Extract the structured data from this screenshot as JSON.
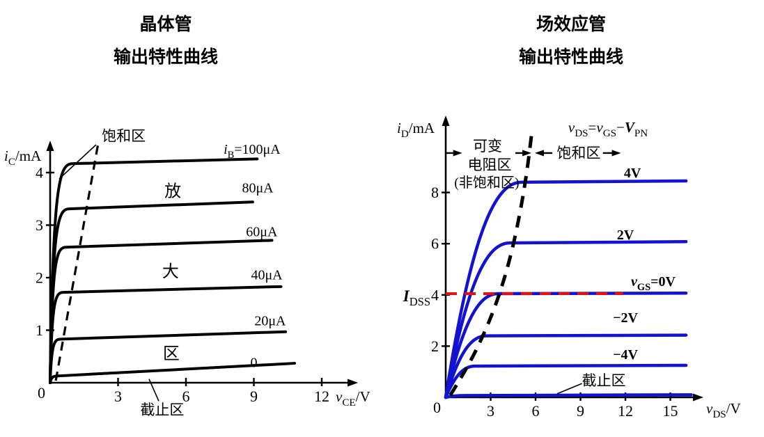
{
  "page": {
    "background": "#ffffff"
  },
  "panels": [
    {
      "title_line1": "晶体管",
      "title_line2": "输出特性曲线"
    },
    {
      "title_line1": "场效应管",
      "title_line2": "输出特性曲线"
    }
  ],
  "chart_data": [
    {
      "type": "line",
      "name": "bjt-output-characteristics",
      "title": "晶体管输出特性曲线",
      "xlabel_segs": [
        {
          "i": "v"
        },
        {
          "sub": "CE"
        },
        {
          "t": "/V"
        }
      ],
      "ylabel_segs": [
        {
          "i": "i"
        },
        {
          "sub": "C"
        },
        {
          "t": "/mA"
        }
      ],
      "xlim": [
        0,
        13.6
      ],
      "ylim": [
        0,
        4.75
      ],
      "x_ticks": [
        3,
        6,
        9,
        12
      ],
      "y_ticks": [
        1,
        2,
        3,
        4
      ],
      "origin_label": "0",
      "curve_color": "#000000",
      "grid": false,
      "legend": "labels-on-curves",
      "series": [
        {
          "name": "iB-100uA",
          "label_segs": [
            {
              "i": "i"
            },
            {
              "sub": "B"
            },
            {
              "t": "=100μA"
            }
          ],
          "knee_v": 1.0,
          "i_sat": 4.17,
          "i_end": 4.26,
          "v_end": 9.15,
          "label_v": 8.92,
          "label_i": 4.36
        },
        {
          "name": "iB-80uA",
          "label_segs": [
            {
              "t": "80μA"
            }
          ],
          "knee_v": 0.85,
          "i_sat": 3.31,
          "i_end": 3.44,
          "v_end": 8.95,
          "label_v": 9.17,
          "label_i": 3.62
        },
        {
          "name": "iB-60uA",
          "label_segs": [
            {
              "t": "60μA"
            }
          ],
          "knee_v": 0.7,
          "i_sat": 2.58,
          "i_end": 2.71,
          "v_end": 9.8,
          "label_v": 9.35,
          "label_i": 2.79
        },
        {
          "name": "iB-40uA",
          "label_segs": [
            {
              "t": "40μA"
            }
          ],
          "knee_v": 0.58,
          "i_sat": 1.72,
          "i_end": 1.83,
          "v_end": 10.2,
          "label_v": 9.57,
          "label_i": 1.97
        },
        {
          "name": "iB-20uA",
          "label_segs": [
            {
              "t": "20μA"
            }
          ],
          "knee_v": 0.47,
          "i_sat": 0.83,
          "i_end": 0.97,
          "v_end": 10.4,
          "label_v": 9.72,
          "label_i": 1.09
        },
        {
          "name": "iB-0",
          "label_segs": [
            {
              "t": "0"
            }
          ],
          "knee_v": 0.4,
          "i_sat": 0.13,
          "i_end": 0.37,
          "v_end": 10.8,
          "label_v": 9.0,
          "label_i": 0.3
        }
      ],
      "boundary": {
        "style": "dashed",
        "color": "#000000",
        "points": [
          [
            0.25,
            0.04
          ],
          [
            2.12,
            4.55
          ]
        ]
      },
      "annotations": [
        {
          "name": "saturation-region-label",
          "segs": [
            {
              "t": "饱和区"
            }
          ],
          "v": 3.25,
          "i": 4.6,
          "size": 21
        },
        {
          "name": "amplification-region-char-1",
          "segs": [
            {
              "t": "放"
            }
          ],
          "v": 5.42,
          "i": 3.54,
          "size": 24
        },
        {
          "name": "amplification-region-char-2",
          "segs": [
            {
              "t": "大"
            }
          ],
          "v": 5.32,
          "i": 2.01,
          "size": 24
        },
        {
          "name": "amplification-region-char-3",
          "segs": [
            {
              "t": "区"
            }
          ],
          "v": 5.35,
          "i": 0.45,
          "size": 24
        },
        {
          "name": "cutoff-region-label",
          "segs": [
            {
              "t": "截止区"
            }
          ],
          "v": 4.95,
          "i": -0.61,
          "size": 21
        }
      ],
      "pointers": [
        {
          "from": [
            2.03,
            4.53
          ],
          "to": [
            0.4,
            3.88
          ]
        },
        {
          "from": [
            4.8,
            -0.35
          ],
          "to": [
            4.37,
            0.07
          ]
        }
      ],
      "arrows": []
    },
    {
      "type": "line",
      "name": "fet-output-characteristics",
      "title": "场效应管输出特性曲线",
      "xlabel_segs": [
        {
          "i": "v"
        },
        {
          "sub": "DS"
        },
        {
          "t": "/V"
        }
      ],
      "ylabel_segs": [
        {
          "i": "i"
        },
        {
          "sub": "D"
        },
        {
          "t": "/mA"
        }
      ],
      "xlim": [
        0,
        17.2
      ],
      "ylim": [
        0,
        11.0
      ],
      "x_ticks": [
        3,
        6,
        9,
        12,
        15
      ],
      "y_ticks": [
        2,
        4,
        6,
        8
      ],
      "origin_label": "0",
      "curve_color": "#1212d0",
      "grid": false,
      "legend": "labels-on-curves",
      "series": [
        {
          "name": "vgs-plus-4v",
          "label_segs": [
            {
              "b": "4V"
            }
          ],
          "knee_v": 5.05,
          "i_sat": 8.4,
          "i_end": 8.45,
          "v_end": 16.05,
          "label_v": 12.47,
          "label_i": 8.59,
          "label_bold": true
        },
        {
          "name": "vgs-plus-2v",
          "label_segs": [
            {
              "b": "2V"
            }
          ],
          "knee_v": 4.28,
          "i_sat": 6.03,
          "i_end": 6.08,
          "v_end": 16.05,
          "label_v": 12.0,
          "label_i": 6.17,
          "label_bold": true
        },
        {
          "name": "vgs-0v",
          "label_segs": [
            {
              "i": "v"
            },
            {
              "sub": "GS"
            },
            {
              "t": "=0V"
            }
          ],
          "knee_v": 3.5,
          "i_sat": 4.05,
          "i_end": 4.07,
          "v_end": 16.05,
          "label_v": 13.86,
          "label_i": 4.35,
          "label_bold": true
        },
        {
          "name": "vgs-minus-2v",
          "label_segs": [
            {
              "b": "−2V"
            }
          ],
          "knee_v": 2.7,
          "i_sat": 2.4,
          "i_end": 2.43,
          "v_end": 16.05,
          "label_v": 12.0,
          "label_i": 2.93,
          "label_bold": true
        },
        {
          "name": "vgs-minus-4v",
          "label_segs": [
            {
              "b": "−4V"
            }
          ],
          "knee_v": 1.95,
          "i_sat": 1.22,
          "i_end": 1.25,
          "v_end": 16.05,
          "label_v": 12.0,
          "label_i": 1.49,
          "label_bold": true
        },
        {
          "name": "vgs-cutoff",
          "label_segs": null,
          "knee_v": 1.3,
          "i_sat": 0.07,
          "i_end": 0.1,
          "v_end": 16.4
        }
      ],
      "boundary": {
        "style": "dashed",
        "color": "#000000",
        "points": [
          [
            0.3,
            0.08
          ],
          [
            1.4,
            1.11
          ],
          [
            2.56,
            2.47
          ],
          [
            3.49,
            3.83
          ],
          [
            4.33,
            5.46
          ],
          [
            4.98,
            7.23
          ],
          [
            5.44,
            8.86
          ],
          [
            5.75,
            10.35
          ]
        ]
      },
      "idss_line": {
        "i": 4.05,
        "v_from": 0,
        "v_to": 11.85,
        "color": "#e01212",
        "label_segs": [
          {
            "bi": "I"
          },
          {
            "sub": "DSS"
          }
        ],
        "label_v": -1.02,
        "label_i": 3.75,
        "label_size": 23
      },
      "annotations": [
        {
          "name": "equation-label",
          "segs": [
            {
              "i": "v"
            },
            {
              "sub": "DS"
            },
            {
              "t": "="
            },
            {
              "i": "v"
            },
            {
              "sub": "GS"
            },
            {
              "t": "−"
            },
            {
              "bi": "V"
            },
            {
              "sub": "PN"
            }
          ],
          "v": 10.84,
          "i": 10.35,
          "size": 21
        },
        {
          "name": "variable-resistance-region-line1",
          "segs": [
            {
              "t": "可变"
            }
          ],
          "v": 2.79,
          "i": 9.62,
          "size": 21
        },
        {
          "name": "variable-resistance-region-line2",
          "segs": [
            {
              "t": "电阻区"
            }
          ],
          "v": 2.93,
          "i": 8.89,
          "size": 21
        },
        {
          "name": "variable-resistance-region-line3",
          "segs": [
            {
              "t": "(非饱和区)"
            }
          ],
          "v": 2.74,
          "i": 8.21,
          "size": 20
        },
        {
          "name": "saturation-region-label",
          "segs": [
            {
              "t": "饱和区"
            }
          ],
          "v": 8.88,
          "i": 9.35,
          "size": 21
        },
        {
          "name": "cutoff-region-label",
          "segs": [
            {
              "t": "截止区"
            }
          ],
          "v": 10.56,
          "i": 0.46,
          "size": 21
        }
      ],
      "pointers": [
        {
          "from": [
            9.1,
            0.54
          ],
          "to": [
            7.44,
            0.14
          ]
        }
      ],
      "arrows": [
        {
          "from": [
            0.05,
            9.54
          ],
          "to": [
            1.1,
            9.54
          ]
        },
        {
          "from": [
            4.65,
            9.54
          ],
          "to": [
            5.72,
            9.54
          ]
        },
        {
          "from": [
            7.12,
            9.54
          ],
          "to": [
            5.95,
            9.54
          ]
        },
        {
          "from": [
            10.5,
            9.54
          ],
          "to": [
            11.7,
            9.54
          ]
        }
      ]
    }
  ]
}
